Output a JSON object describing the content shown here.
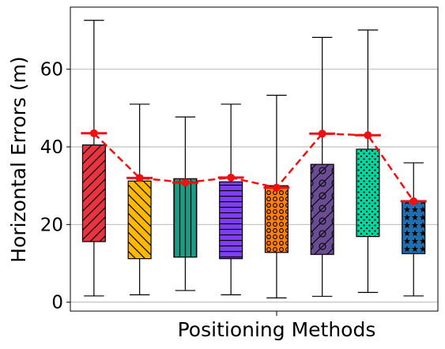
{
  "chart_data": {
    "type": "box",
    "title": "",
    "xlabel": "Positioning Methods",
    "ylabel": "Horizontal Errors (m)",
    "ylim": [
      -2.3,
      76
    ],
    "yticks": [
      0,
      20,
      40,
      60
    ],
    "grid": "horizontal",
    "boxes": [
      {
        "whisker_low": 1.6,
        "q1": 15.6,
        "q3": 40.5,
        "whisker_high": 72.6,
        "mean": 43.5,
        "fill": "#e8343f",
        "pattern": "diag-forward"
      },
      {
        "whisker_low": 1.9,
        "q1": 11.2,
        "q3": 31.2,
        "whisker_high": 51.0,
        "mean": 32.0,
        "fill": "#ffb800",
        "pattern": "diag-back"
      },
      {
        "whisker_low": 3.0,
        "q1": 11.6,
        "q3": 31.8,
        "whisker_high": 47.7,
        "mean": 30.8,
        "fill": "#1d9a84",
        "pattern": "vertical"
      },
      {
        "whisker_low": 1.9,
        "q1": 11.2,
        "q3": 31.0,
        "whisker_high": 51.0,
        "mean": 32.1,
        "fill": "#7f3ff0",
        "pattern": "horizontal"
      },
      {
        "whisker_low": 1.1,
        "q1": 12.8,
        "q3": 30.0,
        "whisker_high": 53.3,
        "mean": 29.5,
        "fill": "#ff7f0e",
        "pattern": "small-circles"
      },
      {
        "whisker_low": 1.5,
        "q1": 12.3,
        "q3": 35.5,
        "whisker_high": 68.2,
        "mean": 43.4,
        "fill": "#6a4c93",
        "pattern": "diag-circles"
      },
      {
        "whisker_low": 2.5,
        "q1": 16.9,
        "q3": 39.4,
        "whisker_high": 70.1,
        "mean": 43.0,
        "fill": "#00d6a0",
        "pattern": "dots"
      },
      {
        "whisker_low": 1.6,
        "q1": 12.5,
        "q3": 25.9,
        "whisker_high": 35.9,
        "mean": 26.0,
        "fill": "#1f6fb0",
        "pattern": "stars"
      }
    ],
    "mean_line_color": "#ee1111",
    "grid_color": "#b0b0b0"
  }
}
